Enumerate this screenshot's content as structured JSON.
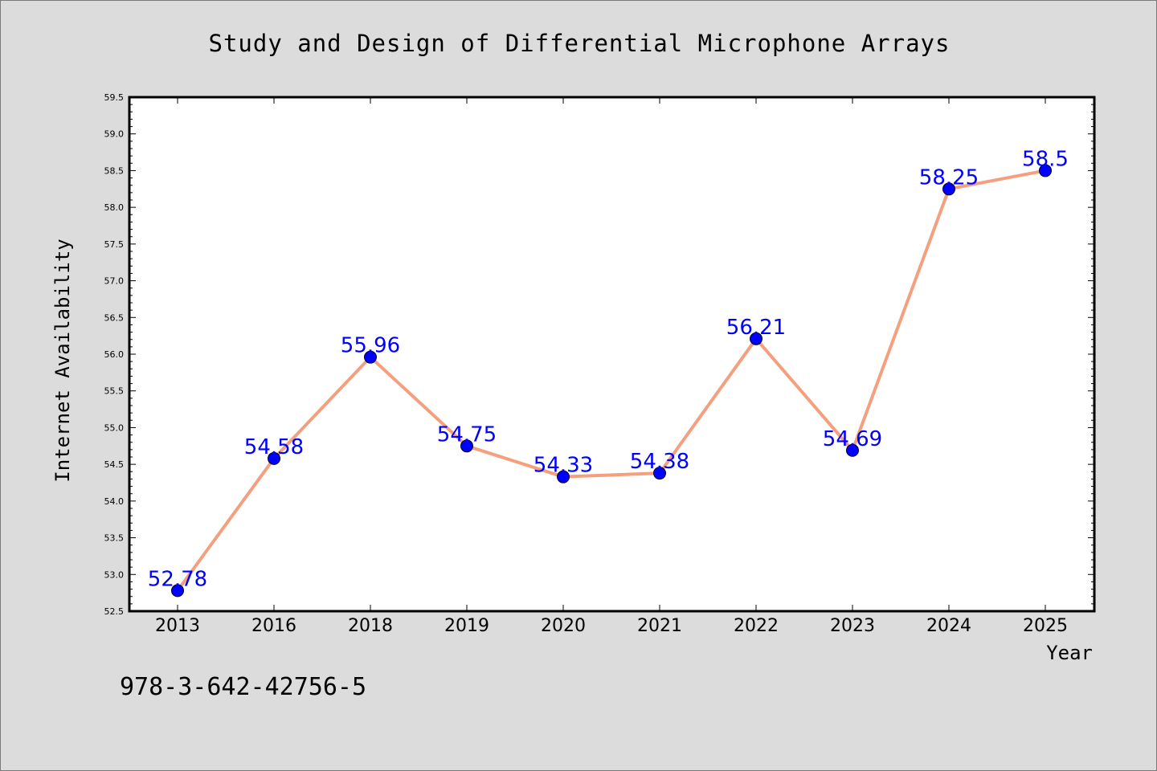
{
  "footer_text": "978-3-642-42756-5",
  "colors": {
    "background": "#dcdcdc",
    "plot_area": "#ffffff",
    "line": "#f4a07e",
    "marker": "#0000ff",
    "data_label": "#0000ff"
  },
  "chart_data": {
    "type": "line",
    "title": "Study and Design of Differential Microphone Arrays",
    "xlabel": "Year",
    "ylabel": "Internet Availability",
    "categories": [
      "2013",
      "2016",
      "2018",
      "2019",
      "2020",
      "2021",
      "2022",
      "2023",
      "2024",
      "2025"
    ],
    "series": [
      {
        "values": [
          52.78,
          54.58,
          55.96,
          54.75,
          54.33,
          54.38,
          56.21,
          54.69,
          58.25,
          58.5
        ],
        "labels": [
          "52.78",
          "54.58",
          "55.96",
          "54.75",
          "54.33",
          "54.38",
          "56.21",
          "54.69",
          "58.25",
          "58.5"
        ]
      }
    ],
    "ylim": [
      52.5,
      59.5
    ],
    "yticks": [
      "52.5",
      "53.0",
      "53.5",
      "54.0",
      "54.5",
      "55.0",
      "55.5",
      "56.0",
      "56.5",
      "57.0",
      "57.5",
      "58.0",
      "58.5",
      "59.0",
      "59.5"
    ],
    "ytick_values": [
      52.5,
      53.0,
      53.5,
      54.0,
      54.5,
      55.0,
      55.5,
      56.0,
      56.5,
      57.0,
      57.5,
      58.0,
      58.5,
      59.0,
      59.5
    ],
    "grid": false,
    "legend": "none"
  }
}
